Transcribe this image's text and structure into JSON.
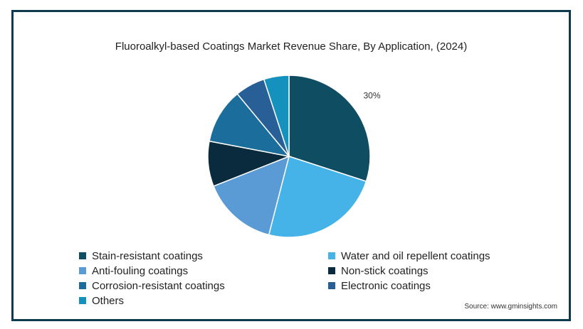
{
  "chart_data": {
    "type": "pie",
    "title": "Fluoroalkyl-based Coatings Market Revenue Share, By Application, (2024)",
    "slices": [
      {
        "label": "Stain-resistant coatings",
        "value": 30,
        "color": "#0f4d63",
        "data_label": "30%"
      },
      {
        "label": "Water and oil repellent coatings",
        "value": 24,
        "color": "#45b3e8",
        "data_label": ""
      },
      {
        "label": "Anti-fouling coatings",
        "value": 15,
        "color": "#5b9bd5",
        "data_label": ""
      },
      {
        "label": "Non-stick coatings",
        "value": 9,
        "color": "#0a2b3d",
        "data_label": ""
      },
      {
        "label": "Corrosion-resistant coatings",
        "value": 11,
        "color": "#1b6e9b",
        "data_label": ""
      },
      {
        "label": "Electronic coatings",
        "value": 6,
        "color": "#285f96",
        "data_label": ""
      },
      {
        "label": "Others",
        "value": 5,
        "color": "#1591bd",
        "data_label": ""
      }
    ],
    "legend_placement": "bottom",
    "source": "Source: www.gminsights.com"
  }
}
